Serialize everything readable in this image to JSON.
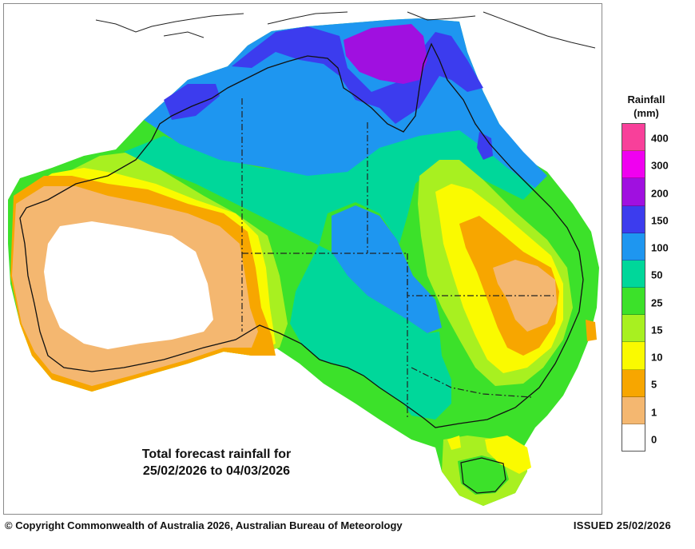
{
  "map": {
    "caption_line1": "Total forecast rainfall for",
    "caption_line2": "25/02/2026 to 04/03/2026",
    "region": "Australia",
    "colors": {
      "land_boundary": "#000000",
      "coast_north": "#333333"
    }
  },
  "legend": {
    "title_line1": "Rainfall",
    "title_line2": "(mm)",
    "bins": [
      {
        "label": "400",
        "color": "#f8409a"
      },
      {
        "label": "300",
        "color": "#f000f0"
      },
      {
        "label": "200",
        "color": "#a010e0"
      },
      {
        "label": "150",
        "color": "#3c3cee"
      },
      {
        "label": "100",
        "color": "#1e96f0"
      },
      {
        "label": "50",
        "color": "#00d79a"
      },
      {
        "label": "25",
        "color": "#3ce12a"
      },
      {
        "label": "15",
        "color": "#a8f020"
      },
      {
        "label": "10",
        "color": "#fafa00"
      },
      {
        "label": "5",
        "color": "#f7a600"
      },
      {
        "label": "1",
        "color": "#f4b770"
      },
      {
        "label": "0",
        "color": "#ffffff"
      }
    ]
  },
  "footer": {
    "copyright": "© Copyright Commonwealth of Australia 2026, Australian Bureau of Meteorology",
    "issued": "ISSUED 25/02/2026"
  }
}
